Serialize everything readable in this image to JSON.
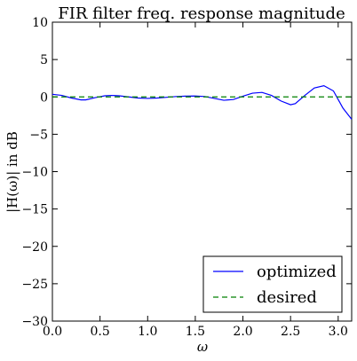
{
  "chart_data": {
    "type": "line",
    "title": "FIR filter freq. response magnitude",
    "xlabel": "ω",
    "ylabel": "|H(ω)| in dB",
    "xlim": [
      0,
      3.14159
    ],
    "ylim": [
      -30,
      10
    ],
    "x_ticks": [
      0.0,
      0.5,
      1.0,
      1.5,
      2.0,
      2.5,
      3.0
    ],
    "x_tick_labels": [
      "0.0",
      "0.5",
      "1.0",
      "1.5",
      "2.0",
      "2.5",
      "3.0"
    ],
    "y_ticks": [
      10,
      5,
      0,
      -5,
      -10,
      -15,
      -20,
      -25,
      -30
    ],
    "y_tick_labels": [
      "10",
      "5",
      "0",
      "−5",
      "−10",
      "−15",
      "−20",
      "−25",
      "−30"
    ],
    "grid": false,
    "legend_position": "lower-right",
    "series": [
      {
        "name": "optimized",
        "color": "#0000ff",
        "style": "solid",
        "x": [
          0.0,
          0.1,
          0.2,
          0.3,
          0.35,
          0.45,
          0.55,
          0.62,
          0.7,
          0.8,
          0.9,
          1.0,
          1.1,
          1.2,
          1.3,
          1.4,
          1.5,
          1.6,
          1.7,
          1.8,
          1.9,
          2.0,
          2.1,
          2.2,
          2.3,
          2.4,
          2.5,
          2.55,
          2.65,
          2.75,
          2.85,
          2.95,
          3.05,
          3.14159
        ],
        "y": [
          0.35,
          0.2,
          -0.15,
          -0.4,
          -0.4,
          -0.1,
          0.15,
          0.2,
          0.15,
          0.0,
          -0.15,
          -0.2,
          -0.15,
          -0.05,
          0.05,
          0.1,
          0.12,
          0.05,
          -0.2,
          -0.45,
          -0.35,
          0.1,
          0.5,
          0.6,
          0.2,
          -0.55,
          -1.05,
          -0.9,
          0.2,
          1.2,
          1.5,
          0.8,
          -1.5,
          -3.0
        ]
      },
      {
        "name": "desired",
        "color": "#008000",
        "style": "dashed",
        "x": [
          0.0,
          3.14159
        ],
        "y": [
          0,
          0
        ]
      }
    ]
  }
}
